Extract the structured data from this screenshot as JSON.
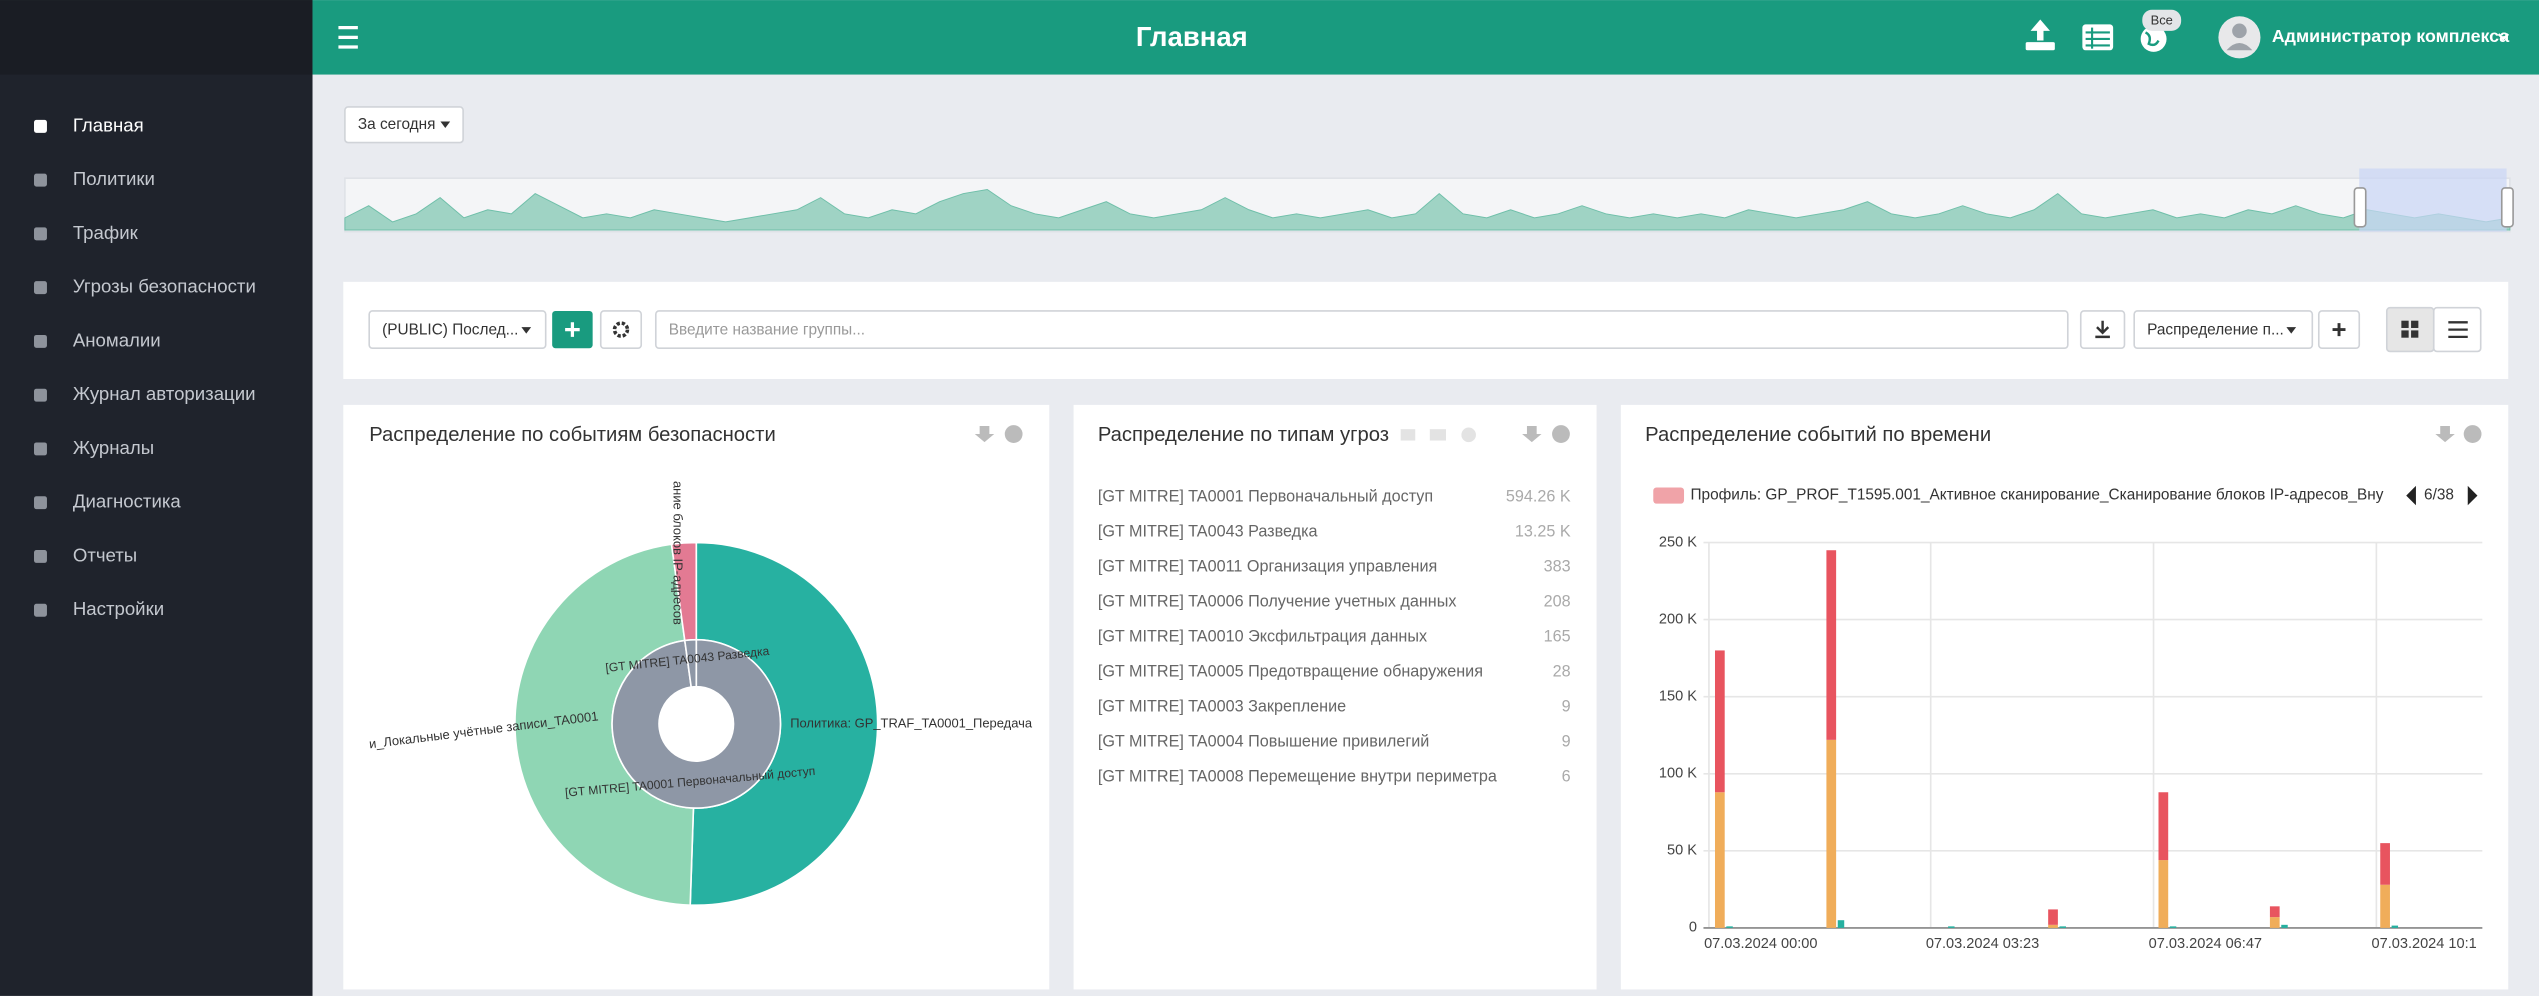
{
  "sidebar": {
    "items": [
      "Главная",
      "Политики",
      "Трафик",
      "Угрозы безопасности",
      "Аномалии",
      "Журнал авторизации",
      "Журналы",
      "Диагностика",
      "Отчеты",
      "Настройки"
    ]
  },
  "header": {
    "title": "Главная",
    "badge": "Все",
    "user": "Администратор комплекса"
  },
  "filter": {
    "period": "За сегодня"
  },
  "timeline": {
    "color": "#9fd3c4",
    "values": [
      3,
      6,
      2,
      4,
      8,
      3,
      5,
      4,
      9,
      6,
      3,
      4,
      3,
      5,
      4,
      3,
      2,
      3,
      4,
      5,
      8,
      4,
      3,
      5,
      4,
      7,
      9,
      10,
      6,
      4,
      3,
      5,
      7,
      4,
      3,
      4,
      5,
      8,
      5,
      3,
      4,
      3,
      4,
      5,
      3,
      4,
      9,
      4,
      3,
      5,
      3,
      4,
      6,
      4,
      3,
      4,
      3,
      4,
      3,
      5,
      4,
      3,
      4,
      5,
      7,
      4,
      3,
      4,
      6,
      4,
      3,
      5,
      9,
      4,
      3,
      4,
      5,
      3,
      4,
      3,
      5,
      4,
      6,
      4,
      3,
      5,
      4,
      3,
      4,
      3,
      2,
      3
    ]
  },
  "toolbar": {
    "group_select": "(PUBLIC) Послед...",
    "search_placeholder": "Введите название группы...",
    "widget_select": "Распределение п..."
  },
  "panels": [
    {
      "title": "Распределение по событиям безопасности",
      "chart": {
        "type": "sunburst",
        "inner": {
          "color": "#8e97a6",
          "labels": [
            "[GT MITRE] TA0001 Первоначальный доступ",
            "[GT MITRE] TA0043 Разведка"
          ],
          "values": [
            594260,
            13250
          ]
        },
        "outer": {
          "colors": [
            "#27b1a1",
            "#8fd6b4",
            "#e37a93"
          ],
          "labels": [
            "Политика: GP_TRAF_TA0001_Передача",
            "и_Локальные учётные записи_TA0001",
            "ание блоков IP-адресов"
          ],
          "values": [
            307000,
            287260,
            13250
          ]
        }
      }
    },
    {
      "title": "Распределение по типам угроз",
      "rows": [
        {
          "label": "[GT MITRE] TA0001 Первоначальный доступ",
          "value": "594.26 K"
        },
        {
          "label": "[GT MITRE] TA0043 Разведка",
          "value": "13.25 K"
        },
        {
          "label": "[GT MITRE] TA0011 Организация управления",
          "value": "383"
        },
        {
          "label": "[GT MITRE] TA0006 Получение учетных данных",
          "value": "208"
        },
        {
          "label": "[GT MITRE] TA0010 Эксфильтрация данных",
          "value": "165"
        },
        {
          "label": "[GT MITRE] TA0005 Предотвращение обнаружения",
          "value": "28"
        },
        {
          "label": "[GT MITRE] TA0003 Закрепление",
          "value": "9"
        },
        {
          "label": "[GT MITRE] TA0004 Повышение привилегий",
          "value": "9"
        },
        {
          "label": "[GT MITRE] TA0008 Перемещение внутри периметра",
          "value": "6"
        }
      ]
    },
    {
      "title": "Распределение событий по времени",
      "legend": "Профиль: GP_PROF_T1595.001_Активное сканирование_Сканирование блоков IP-адресов_Вну",
      "legend_color": "#f0a3a8",
      "pager": "6/38",
      "chart": {
        "type": "bar",
        "x": [
          10,
          112,
          213,
          315,
          416,
          518,
          619
        ],
        "xlim": [
          -5,
          708
        ],
        "xticks": [
          {
            "value": 0,
            "label": "07.03.2024 00:00"
          },
          {
            "value": 203,
            "label": "07.03.2024 03:23"
          },
          {
            "value": 407,
            "label": "07.03.2024 06:47"
          },
          {
            "value": 611,
            "label": "07.03.2024 10:1"
          }
        ],
        "ylim": [
          0,
          250000
        ],
        "yticks": [
          0,
          {
            "value": 50000,
            "label": "50 K"
          },
          {
            "value": 100000,
            "label": "100 K"
          },
          {
            "value": 150000,
            "label": "150 K"
          },
          {
            "value": 200000,
            "label": "200 K"
          },
          {
            "value": 250000,
            "label": "250 K"
          }
        ],
        "grid": true,
        "series": [
          {
            "color": "#f0ad5a",
            "values": [
              88000,
              122000,
              0,
              2000,
              44000,
              7000,
              28000
            ]
          },
          {
            "color": "#e8545f",
            "values": [
              92000,
              123000,
              0,
              10000,
              44000,
              7000,
              27000
            ]
          },
          {
            "color": "#26b0a0",
            "side": true,
            "values": [
              1000,
              5000,
              1000,
              1000,
              1000,
              2000,
              1500
            ]
          }
        ]
      }
    }
  ]
}
